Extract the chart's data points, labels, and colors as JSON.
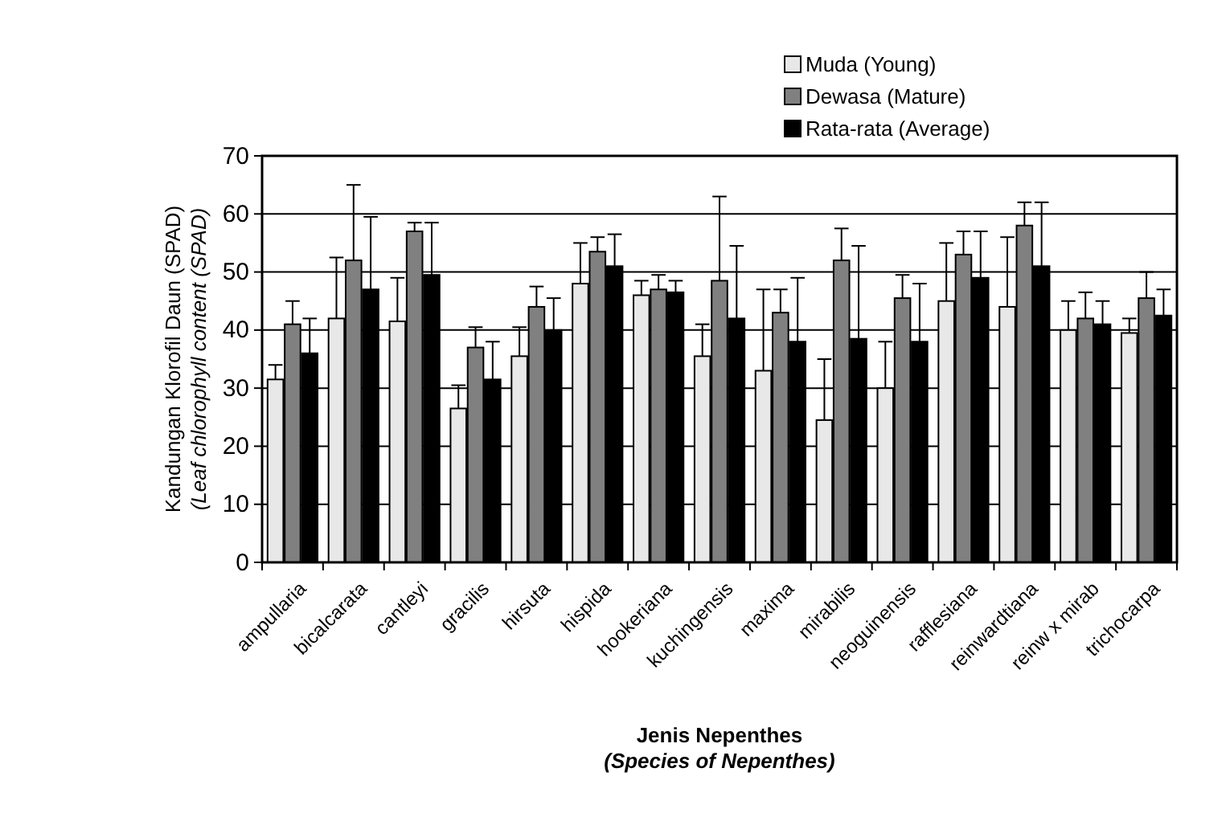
{
  "chart_data": {
    "type": "bar",
    "xlabel": "Jenis Nepenthes\n(Species of Nepenthes)",
    "ylabel": "Kandungan Klorofil Daun (SPAD)\n(Leaf chlorophyll content (SPAD)",
    "categories": [
      "ampullaria",
      "bicalcarata",
      "cantleyi",
      "gracilis",
      "hirsuta",
      "hispida",
      "hookeriana",
      "kuchingensis",
      "maxima",
      "mirabilis",
      "neoguinensis",
      "rafflesiana",
      "reinwardtiana",
      "reinw x mirab",
      "trichocarpa"
    ],
    "series": [
      {
        "name": "Muda (Young)",
        "color": "#e8e8e8",
        "values": [
          31.5,
          42,
          41.5,
          26.5,
          35.5,
          48,
          46,
          35.5,
          33,
          24.5,
          30,
          45,
          44,
          40,
          39.5
        ],
        "errors": [
          [
            31.5,
            34
          ],
          [
            42,
            52.5
          ],
          [
            41.5,
            49
          ],
          [
            26.5,
            30.5
          ],
          [
            35.5,
            40.5
          ],
          [
            48,
            55
          ],
          [
            46,
            48.5
          ],
          [
            35.5,
            41
          ],
          [
            33,
            47
          ],
          [
            24.5,
            35
          ],
          [
            30,
            38
          ],
          [
            45,
            55
          ],
          [
            44,
            56
          ],
          [
            40,
            45
          ],
          [
            39.5,
            42
          ]
        ]
      },
      {
        "name": "Dewasa (Mature)",
        "color": "#808080",
        "values": [
          41,
          52,
          57,
          37,
          44,
          53.5,
          47,
          48.5,
          43,
          52,
          45.5,
          53,
          58,
          42,
          45.5
        ],
        "errors": [
          [
            41,
            45
          ],
          [
            52,
            65
          ],
          [
            57,
            58.5
          ],
          [
            37,
            40.5
          ],
          [
            44,
            47.5
          ],
          [
            53.5,
            56
          ],
          [
            47,
            49.5
          ],
          [
            48.5,
            63
          ],
          [
            43,
            47
          ],
          [
            52,
            57.5
          ],
          [
            45.5,
            49.5
          ],
          [
            53,
            57
          ],
          [
            58,
            62
          ],
          [
            42,
            46.5
          ],
          [
            45.5,
            50
          ]
        ]
      },
      {
        "name": "Rata-rata (Average)",
        "color": "#000000",
        "values": [
          36,
          47,
          49.5,
          31.5,
          40,
          51,
          46.5,
          42,
          38,
          38.5,
          38,
          49,
          51,
          41,
          42.5
        ],
        "errors": [
          [
            36,
            42
          ],
          [
            47,
            59.5
          ],
          [
            49.5,
            58.5
          ],
          [
            31.5,
            38
          ],
          [
            40,
            45.5
          ],
          [
            51,
            56.5
          ],
          [
            46.5,
            48.5
          ],
          [
            42,
            54.5
          ],
          [
            38,
            49
          ],
          [
            38.5,
            54.5
          ],
          [
            38,
            48
          ],
          [
            49,
            57
          ],
          [
            51,
            62
          ],
          [
            41,
            45
          ],
          [
            42.5,
            47
          ]
        ]
      }
    ],
    "ylim": [
      0,
      70
    ],
    "yticks": [
      0,
      10,
      20,
      30,
      40,
      50,
      60,
      70
    ],
    "grid": "y",
    "legend": "top right"
  }
}
